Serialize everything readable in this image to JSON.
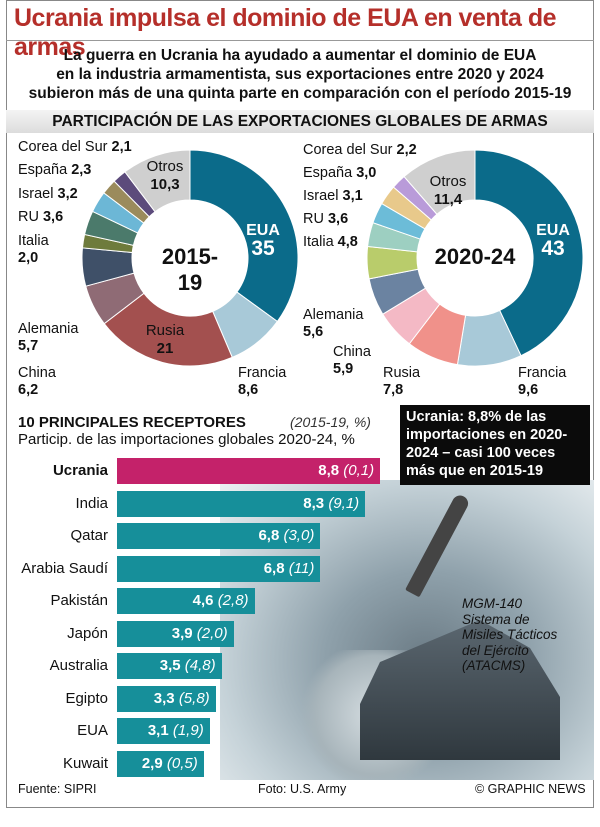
{
  "title": "Ucrania impulsa el dominio de EUA en venta de armas",
  "subtitle": [
    "La guerra en Ucrania ha ayudado a aumentar el dominio de EUA",
    "en la industria armamentista, sus exportaciones entre 2020 y 2024",
    "subieron más de una quinta parte en comparación con el período 2015-19"
  ],
  "section": "PARTICIPACIÓN DE LAS EXPORTACIONES GLOBALES DE ARMAS",
  "chart_data": [
    {
      "type": "pie",
      "title": "2015-19",
      "unit": "%",
      "categories": [
        "EUA",
        "Francia",
        "Rusia",
        "China",
        "Alemania",
        "Italia",
        "RU",
        "Israel",
        "España",
        "Corea del Sur",
        "Otros"
      ],
      "values": [
        35,
        8.6,
        21,
        6.2,
        5.7,
        2.0,
        3.6,
        3.2,
        2.3,
        2.1,
        10.3
      ],
      "labels": [
        "35",
        "8,6",
        "21",
        "6,2",
        "5,7",
        "2,0",
        "3,6",
        "3,2",
        "2,3",
        "2,1",
        "10,3"
      ],
      "colors": [
        "#0b6b8a",
        "#a8c9d8",
        "#a3504f",
        "#8f6b75",
        "#3f5068",
        "#6e7b3c",
        "#4b7a6b",
        "#6cb7d6",
        "#9b8b5c",
        "#5c4b7b",
        "#cfcfcf"
      ]
    },
    {
      "type": "pie",
      "title": "2020-24",
      "unit": "%",
      "categories": [
        "EUA",
        "Francia",
        "Rusia",
        "China",
        "Alemania",
        "Italia",
        "RU",
        "Israel",
        "España",
        "Corea del Sur",
        "Otros"
      ],
      "values": [
        43,
        9.6,
        7.8,
        5.9,
        5.6,
        4.8,
        3.6,
        3.1,
        3.0,
        2.2,
        11.4
      ],
      "labels": [
        "43",
        "9,6",
        "7,8",
        "5,9",
        "5,6",
        "4,8",
        "3,6",
        "3,1",
        "3,0",
        "2,2",
        "11,4"
      ],
      "colors": [
        "#0b6b8a",
        "#a8c9d8",
        "#f0918a",
        "#f4b9c5",
        "#6b83a1",
        "#b9cc6b",
        "#9dcfc1",
        "#6cbcd8",
        "#e8c98b",
        "#b99bd9",
        "#cfcfcf"
      ]
    },
    {
      "type": "bar",
      "title": "10 PRINCIPALES RECEPTORES",
      "subtitle": "Particip. de las importaciones globales 2020-24, %",
      "secondary_label": "(2015-19, %)",
      "categories": [
        "Ucrania",
        "India",
        "Qatar",
        "Arabia Saudí",
        "Pakistán",
        "Japón",
        "Australia",
        "Egipto",
        "EUA",
        "Kuwait"
      ],
      "values": [
        8.8,
        8.3,
        6.8,
        6.8,
        4.6,
        3.9,
        3.5,
        3.3,
        3.1,
        2.9
      ],
      "value_labels": [
        "8,8",
        "8,3",
        "6,8",
        "6,8",
        "4,6",
        "3,9",
        "3,5",
        "3,3",
        "3,1",
        "2,9"
      ],
      "prev_labels": [
        "(0,1)",
        "(9,1)",
        "(3,0)",
        "(11)",
        "(2,8)",
        "(2,0)",
        "(4,8)",
        "(5,8)",
        "(1,9)",
        "(0,5)"
      ],
      "colors": {
        "highlight": "#c4226a",
        "default": "#168f9a"
      }
    }
  ],
  "callout": "Ucrania: 8,8% de las importaciones en 2020-2024 – casi 100 veces más que en 2015-19",
  "caption": [
    "MGM-140",
    "Sistema de",
    "Misiles Tácticos",
    "del Ejército",
    "(ATACMS)"
  ],
  "footer": {
    "source": "Fuente: SIPRI",
    "photo": "Foto: U.S. Army",
    "credit": "© GRAPHIC NEWS"
  }
}
